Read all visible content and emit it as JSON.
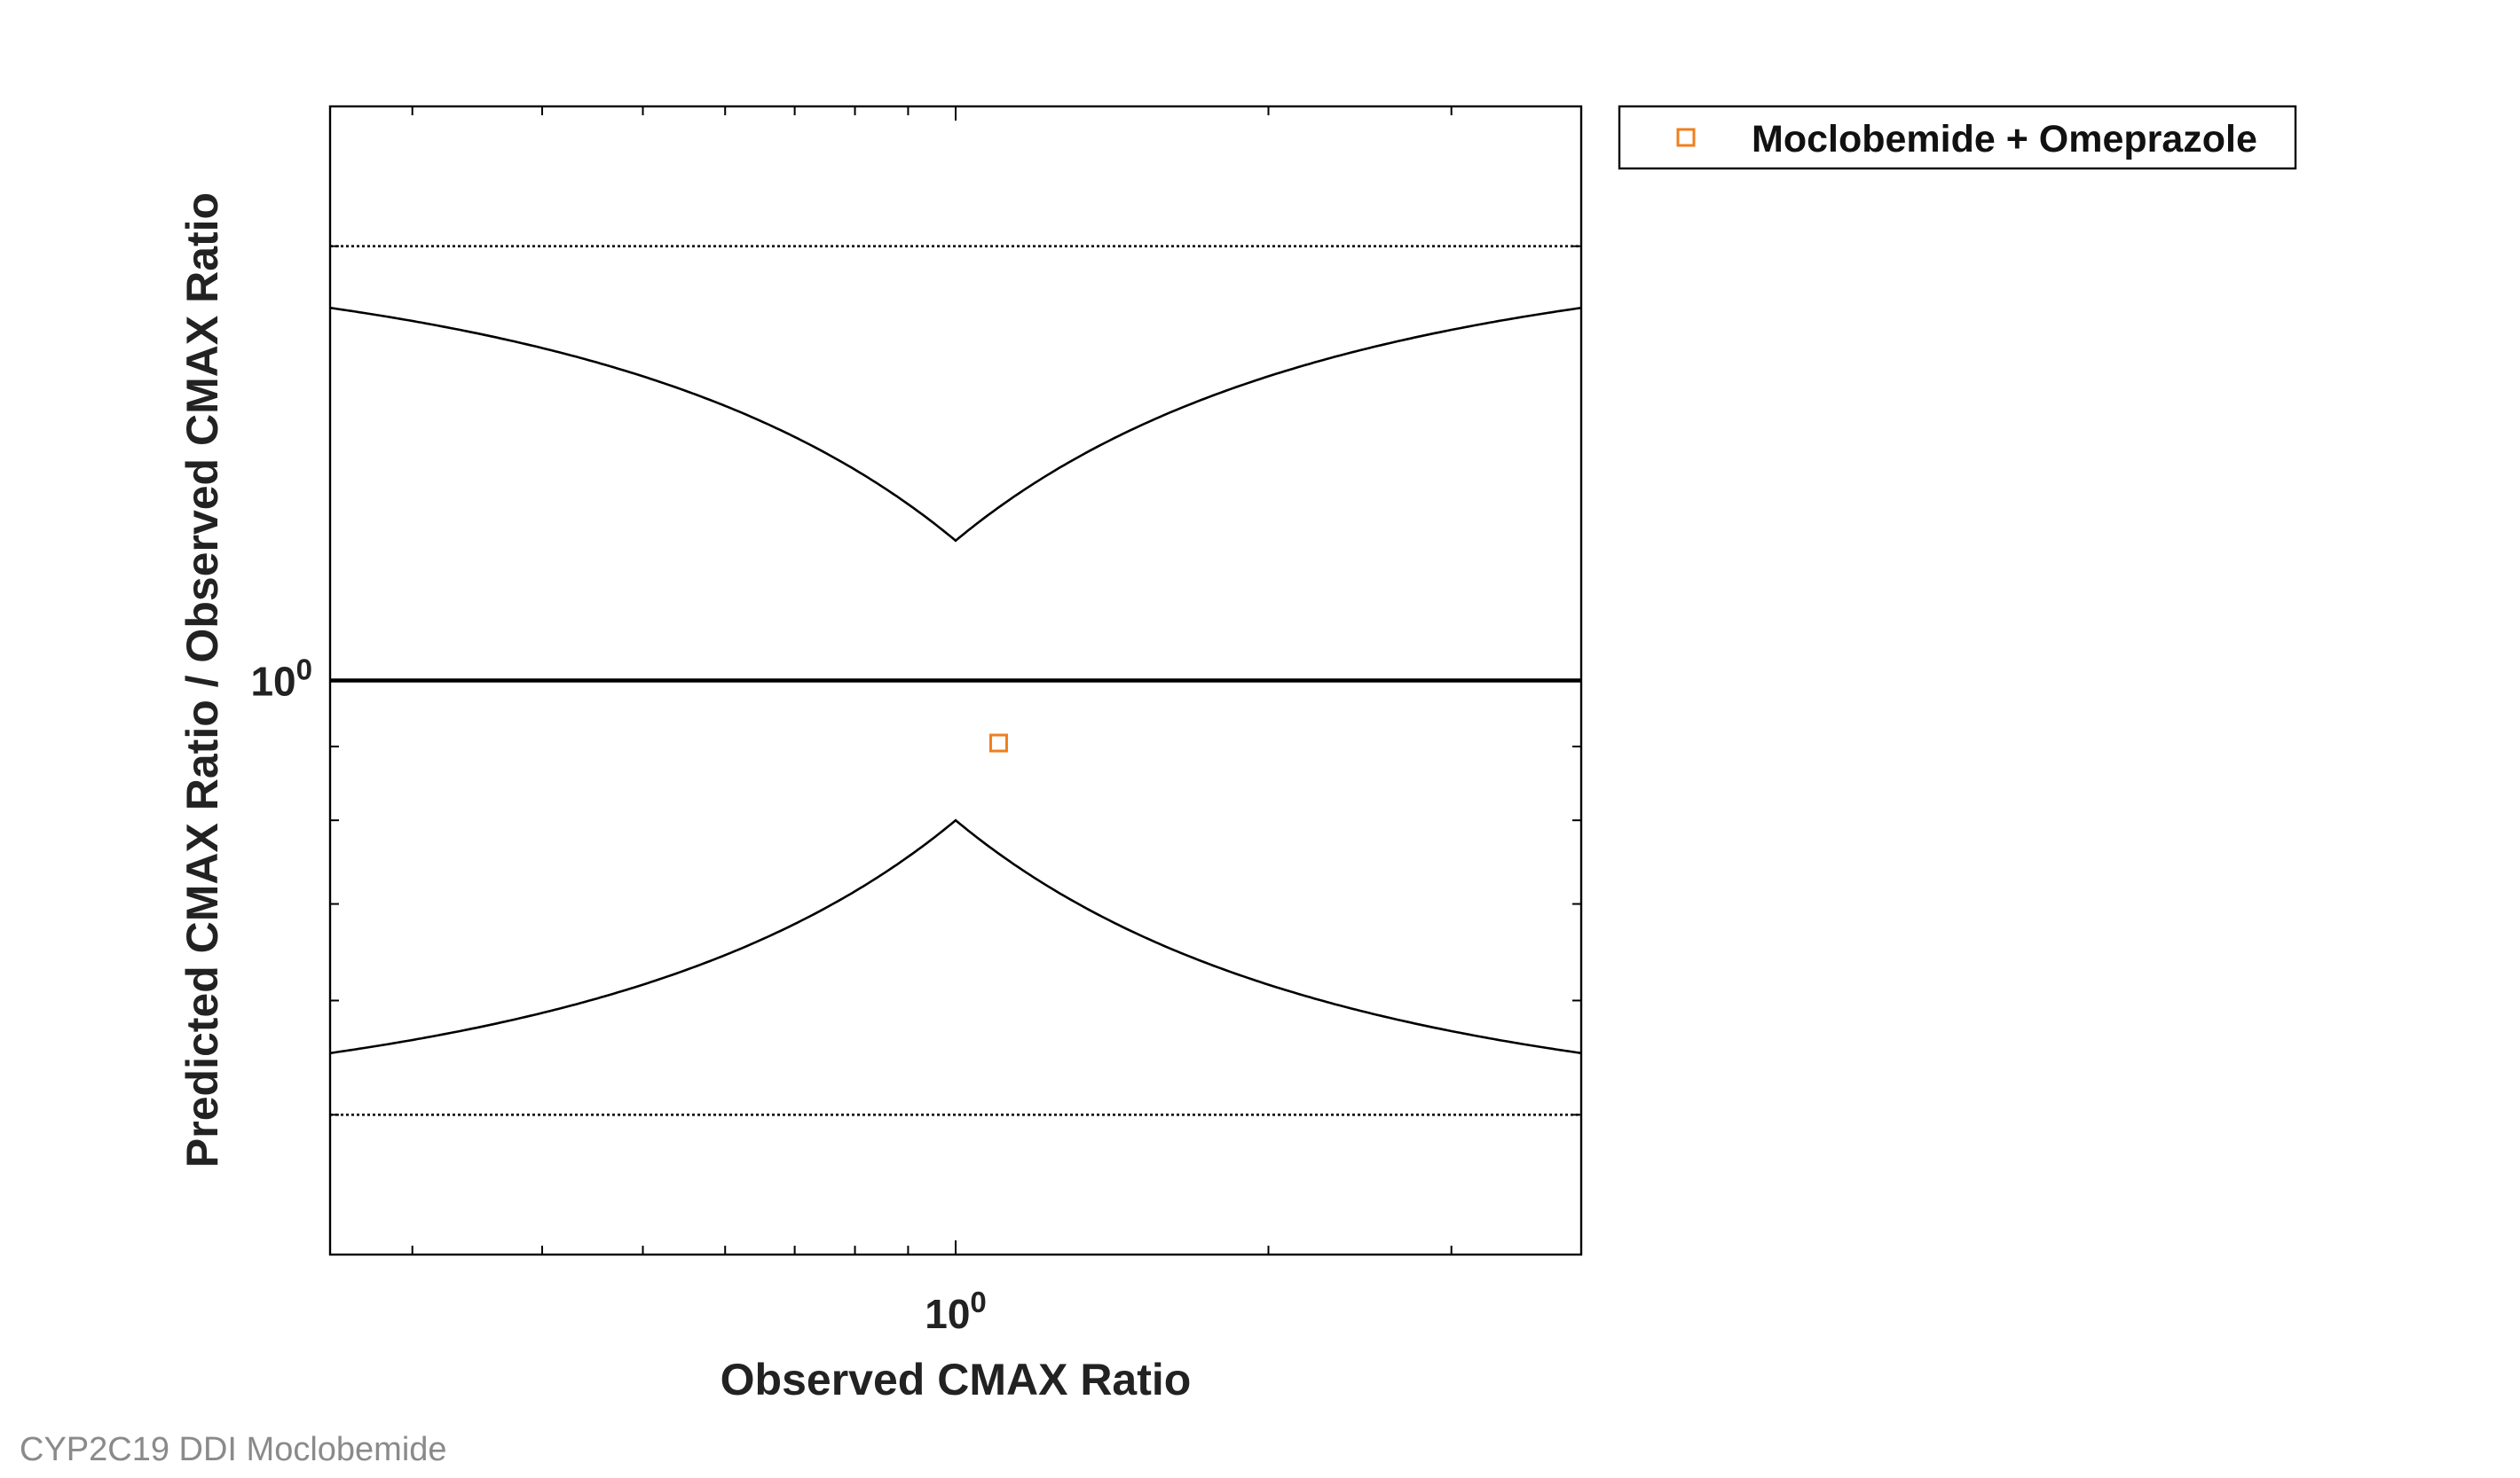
{
  "chart_data": {
    "type": "scatter",
    "title": "",
    "xlabel": "Observed CMAX Ratio",
    "ylabel": "Predicted CMAX Ratio / Observed CMAX Ratio",
    "xscale": "log",
    "yscale": "log",
    "xlim": [
      0.25,
      4
    ],
    "ylim": [
      0.4,
      2.5
    ],
    "x_tick_labels": [
      {
        "base": "10",
        "exp": "0",
        "value": 1
      }
    ],
    "y_tick_labels": [
      {
        "base": "10",
        "exp": "0",
        "value": 1
      }
    ],
    "reference_lines": [
      {
        "name": "unity",
        "type": "horizontal",
        "y": 1,
        "style": "solid-thick"
      },
      {
        "name": "upper-2fold",
        "type": "horizontal",
        "y": 2,
        "style": "dotted"
      },
      {
        "name": "lower-2fold",
        "type": "horizontal",
        "y": 0.5,
        "style": "dotted"
      },
      {
        "name": "guest-limit-upper",
        "type": "guest",
        "bound": "upper",
        "delta": 1.25
      },
      {
        "name": "guest-limit-lower",
        "type": "guest",
        "bound": "lower",
        "delta": 1.25
      }
    ],
    "series": [
      {
        "name": "Moclobemide + Omeprazole",
        "marker": "square-open",
        "color": "#f07f1d",
        "points": [
          {
            "x": 1.1,
            "y": 0.905
          }
        ]
      }
    ],
    "legend_position": "outside-top-right"
  },
  "footer": {
    "caption": "CYP2C19 DDI Moclobemide"
  }
}
